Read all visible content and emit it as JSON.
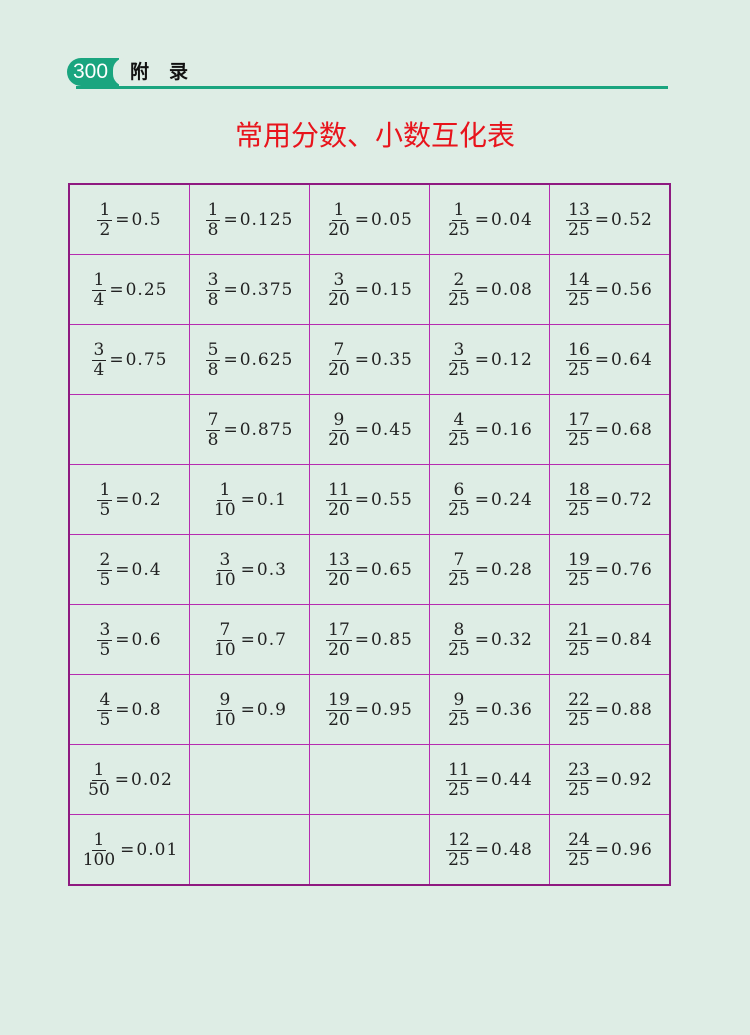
{
  "header": {
    "page_number": "300",
    "section": "附录",
    "accent": "#1aa57f"
  },
  "title": "常用分数、小数互化表",
  "table": {
    "border_color": "#9b1a8c",
    "rows": [
      [
        {
          "n": "1",
          "d": "2",
          "v": "0.5"
        },
        {
          "n": "1",
          "d": "8",
          "v": "0.125"
        },
        {
          "n": "1",
          "d": "20",
          "v": "0.05"
        },
        {
          "n": "1",
          "d": "25",
          "v": "0.04"
        },
        {
          "n": "13",
          "d": "25",
          "v": "0.52"
        }
      ],
      [
        {
          "n": "1",
          "d": "4",
          "v": "0.25"
        },
        {
          "n": "3",
          "d": "8",
          "v": "0.375"
        },
        {
          "n": "3",
          "d": "20",
          "v": "0.15"
        },
        {
          "n": "2",
          "d": "25",
          "v": "0.08"
        },
        {
          "n": "14",
          "d": "25",
          "v": "0.56"
        }
      ],
      [
        {
          "n": "3",
          "d": "4",
          "v": "0.75"
        },
        {
          "n": "5",
          "d": "8",
          "v": "0.625"
        },
        {
          "n": "7",
          "d": "20",
          "v": "0.35"
        },
        {
          "n": "3",
          "d": "25",
          "v": "0.12"
        },
        {
          "n": "16",
          "d": "25",
          "v": "0.64"
        }
      ],
      [
        null,
        {
          "n": "7",
          "d": "8",
          "v": "0.875"
        },
        {
          "n": "9",
          "d": "20",
          "v": "0.45"
        },
        {
          "n": "4",
          "d": "25",
          "v": "0.16"
        },
        {
          "n": "17",
          "d": "25",
          "v": "0.68"
        }
      ],
      [
        {
          "n": "1",
          "d": "5",
          "v": "0.2"
        },
        {
          "n": "1",
          "d": "10",
          "v": "0.1"
        },
        {
          "n": "11",
          "d": "20",
          "v": "0.55"
        },
        {
          "n": "6",
          "d": "25",
          "v": "0.24"
        },
        {
          "n": "18",
          "d": "25",
          "v": "0.72"
        }
      ],
      [
        {
          "n": "2",
          "d": "5",
          "v": "0.4"
        },
        {
          "n": "3",
          "d": "10",
          "v": "0.3"
        },
        {
          "n": "13",
          "d": "20",
          "v": "0.65"
        },
        {
          "n": "7",
          "d": "25",
          "v": "0.28"
        },
        {
          "n": "19",
          "d": "25",
          "v": "0.76"
        }
      ],
      [
        {
          "n": "3",
          "d": "5",
          "v": "0.6"
        },
        {
          "n": "7",
          "d": "10",
          "v": "0.7"
        },
        {
          "n": "17",
          "d": "20",
          "v": "0.85"
        },
        {
          "n": "8",
          "d": "25",
          "v": "0.32"
        },
        {
          "n": "21",
          "d": "25",
          "v": "0.84"
        }
      ],
      [
        {
          "n": "4",
          "d": "5",
          "v": "0.8"
        },
        {
          "n": "9",
          "d": "10",
          "v": "0.9"
        },
        {
          "n": "19",
          "d": "20",
          "v": "0.95"
        },
        {
          "n": "9",
          "d": "25",
          "v": "0.36"
        },
        {
          "n": "22",
          "d": "25",
          "v": "0.88"
        }
      ],
      [
        {
          "n": "1",
          "d": "50",
          "v": "0.02"
        },
        null,
        null,
        {
          "n": "11",
          "d": "25",
          "v": "0.44"
        },
        {
          "n": "23",
          "d": "25",
          "v": "0.92"
        }
      ],
      [
        {
          "n": "1",
          "d": "100",
          "v": "0.01"
        },
        null,
        null,
        {
          "n": "12",
          "d": "25",
          "v": "0.48"
        },
        {
          "n": "24",
          "d": "25",
          "v": "0.96"
        }
      ]
    ]
  }
}
